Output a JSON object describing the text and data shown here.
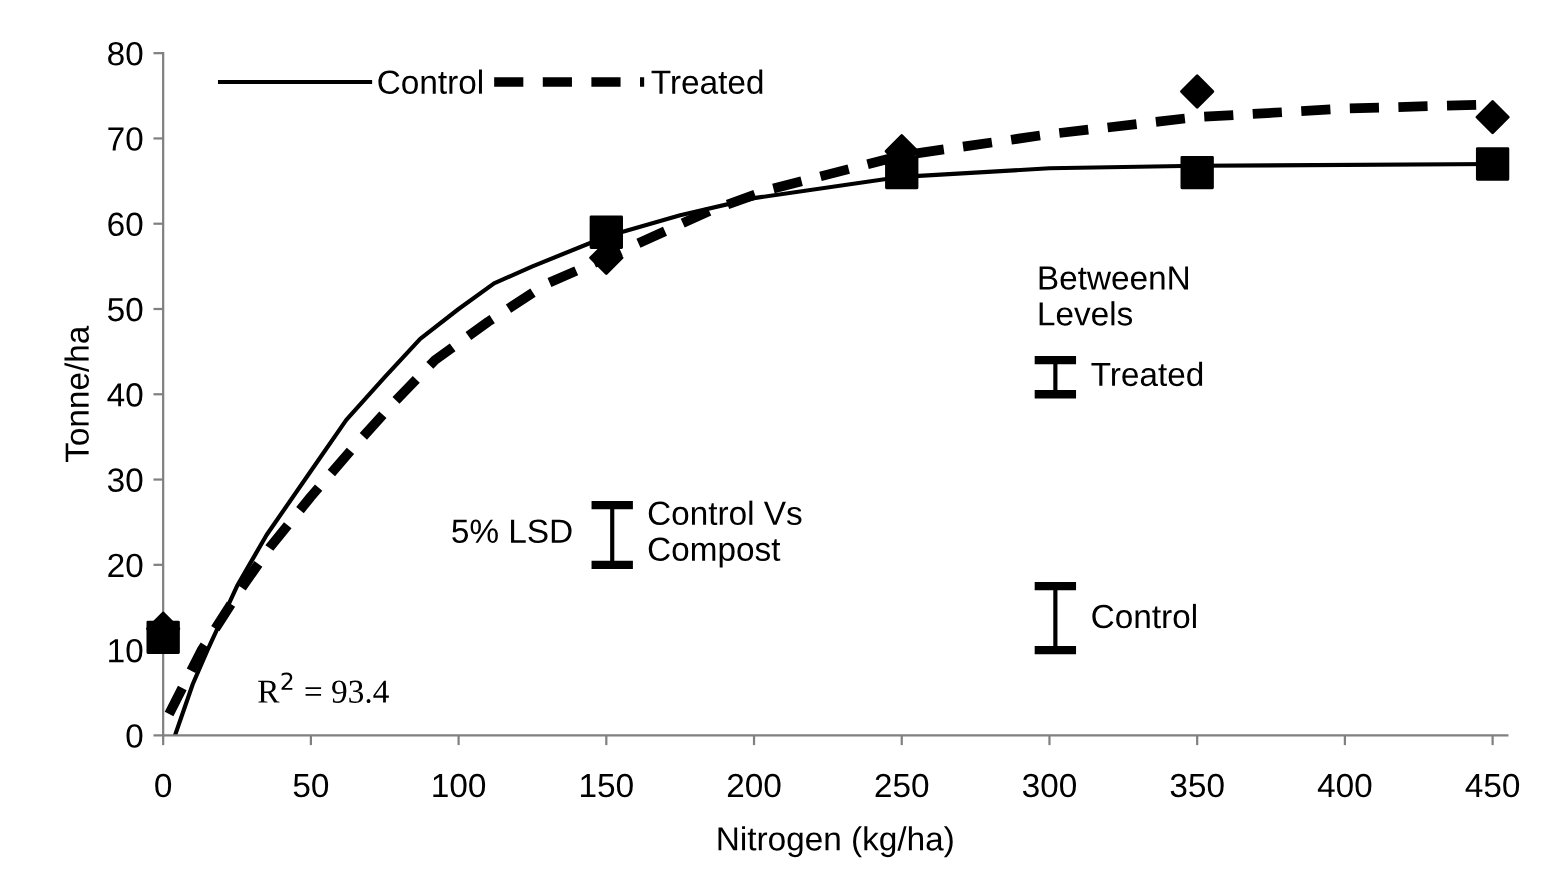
{
  "chart_data": {
    "type": "line",
    "xlabel": "Nitrogen (kg/ha)",
    "ylabel": "Tonne/ha",
    "xlim": [
      0,
      455
    ],
    "ylim": [
      0,
      80
    ],
    "xticks": [
      0,
      50,
      100,
      150,
      200,
      250,
      300,
      350,
      400,
      450
    ],
    "yticks": [
      0,
      10,
      20,
      30,
      40,
      50,
      60,
      70,
      80
    ],
    "grid": false,
    "legend": "top left",
    "series": [
      {
        "type": "scatter",
        "color": "#000000",
        "marker": "square",
        "x": [
          0,
          150,
          250,
          350,
          450
        ],
        "values": [
          11.5,
          59,
          66,
          66,
          67
        ]
      },
      {
        "type": "scatter",
        "color": "#000000",
        "marker": "diamond",
        "x": [
          0,
          150,
          250,
          350,
          450
        ],
        "values": [
          12.5,
          56,
          68.5,
          75.5,
          72.5
        ]
      },
      {
        "name": "Control",
        "color": "#000000",
        "line_style": "solid",
        "x": [
          4,
          10,
          15,
          25,
          35,
          50,
          62,
          75,
          87,
          100,
          112,
          125,
          150,
          175,
          200,
          250,
          300,
          350,
          450
        ],
        "values": [
          0,
          6,
          10,
          17.5,
          23.5,
          31,
          37,
          42,
          46.5,
          50,
          53,
          55,
          58.5,
          61,
          63,
          65.5,
          66.5,
          66.8,
          67
        ]
      },
      {
        "name": "Treated",
        "color": "#000000",
        "line_style": "dashed",
        "x": [
          2,
          13,
          25,
          36,
          50,
          65,
          78,
          92,
          110,
          130,
          150,
          185,
          205,
          250,
          300,
          350,
          400,
          450
        ],
        "values": [
          2.5,
          10,
          16.5,
          22,
          28,
          34,
          39,
          44,
          48.5,
          53,
          56,
          61.5,
          64,
          68,
          70.5,
          72.5,
          73.5,
          74
        ]
      },
      {
        "color": "#000000",
        "line_style": "solid",
        "x": [
          152,
          152
        ],
        "values": [
          20,
          27
        ]
      },
      {
        "color": "#000000",
        "line_style": "solid",
        "x": [
          302,
          302
        ],
        "values": [
          40,
          44
        ]
      },
      {
        "color": "#000000",
        "line_style": "solid",
        "x": [
          302,
          302
        ],
        "values": [
          10,
          17.5
        ]
      }
    ],
    "annotations": [
      "R$^{2}$ = 93.4",
      "5% LSD",
      "Control Vs\nCompost",
      "BetweenN\nLevels",
      "Treated",
      "Control"
    ]
  }
}
